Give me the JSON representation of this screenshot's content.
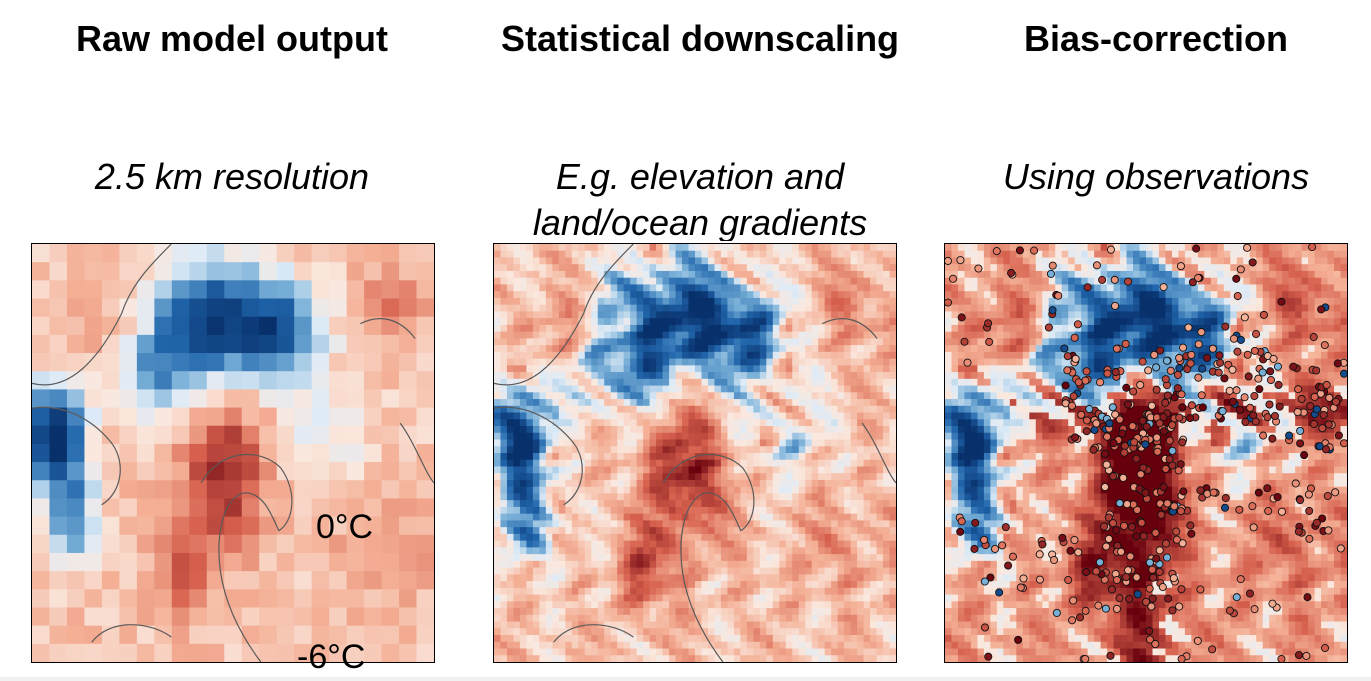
{
  "panels": [
    {
      "title": "Raw model output",
      "subtitle_lines": [
        "2.5 km resolution"
      ]
    },
    {
      "title": "Statistical downscaling",
      "subtitle_lines": [
        "E.g. elevation and",
        "land/ocean gradients"
      ]
    },
    {
      "title": "Bias-correction",
      "subtitle_lines": [
        "Using observations"
      ]
    }
  ],
  "colorbar": {
    "max_label": "0°C",
    "min_label": "-6°C"
  },
  "colors": {
    "cold_dark": "#08306b",
    "cold_mid": "#2f7fbf",
    "cold_light": "#c8def0",
    "neutral": "#f7f4f2",
    "warm_light": "#f4c2ab",
    "warm_mid": "#d6604d",
    "warm_dark": "#67000d",
    "coastline": "#5a5a5a",
    "frame": "#000000"
  }
}
